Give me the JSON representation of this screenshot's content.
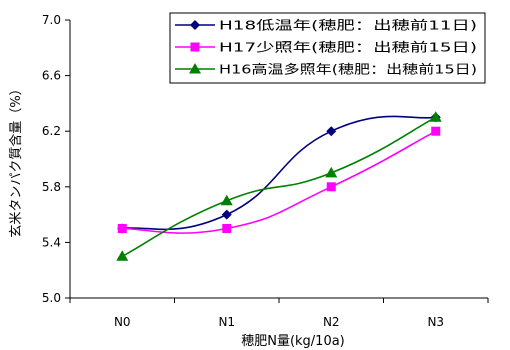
{
  "chart_data": {
    "type": "line",
    "title": "",
    "categories": [
      "N0",
      "N1",
      "N2",
      "N3"
    ],
    "xlabel": "穂肥N量(kg/10a)",
    "ylabel": "玄米タンパク質含量（%）",
    "ylim": [
      5.0,
      7.0
    ],
    "yticks": [
      "5.0",
      "5.4",
      "5.8",
      "6.2",
      "6.6",
      "7.0"
    ],
    "grid": false,
    "legend_position": "top-right",
    "series": [
      {
        "name": "H18低温年(穂肥：出穂前11日)",
        "values": [
          5.5,
          5.6,
          6.2,
          6.3
        ],
        "color": "#000080",
        "marker": "diamond"
      },
      {
        "name": "H17少照年(穂肥：出穂前15日)",
        "values": [
          5.5,
          5.5,
          5.8,
          6.2
        ],
        "color": "#ff00ff",
        "marker": "square"
      },
      {
        "name": "H16高温多照年(穂肥：出穂前15日)",
        "values": [
          5.3,
          5.7,
          5.9,
          6.3
        ],
        "color": "#008000",
        "marker": "triangle"
      }
    ]
  }
}
